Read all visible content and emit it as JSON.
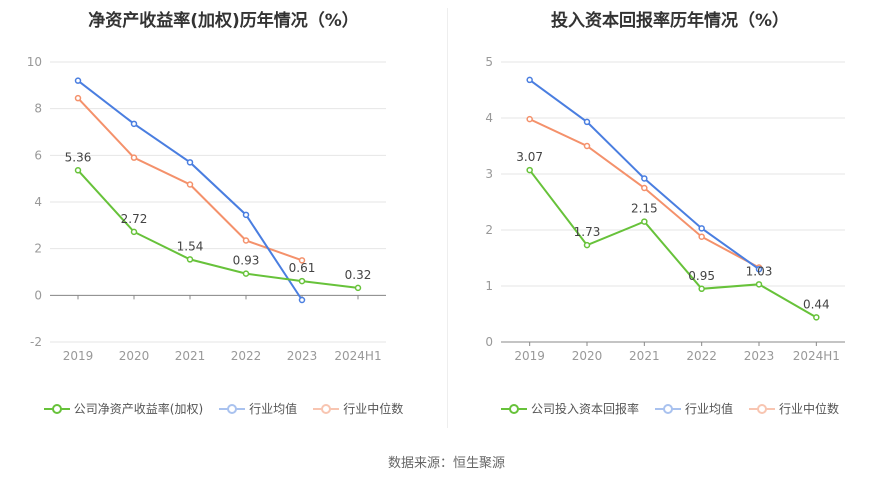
{
  "colors": {
    "company": "#67c23a",
    "average": "#4a7ee0",
    "median": "#f4916b",
    "grid": "#e6e6e6",
    "axis": "#999999"
  },
  "source_text": "数据来源：恒生聚源",
  "chart_data": [
    {
      "type": "line",
      "title": "净资产收益率(加权)历年情况（%）",
      "categories": [
        "2019",
        "2020",
        "2021",
        "2022",
        "2023",
        "2024H1"
      ],
      "ylim": [
        -2,
        10
      ],
      "yticks": [
        -2,
        0,
        2,
        4,
        6,
        8,
        10
      ],
      "grid": true,
      "legend_placement": "bottom",
      "series": [
        {
          "name": "公司净资产收益率(加权)",
          "role": "company",
          "values": [
            5.36,
            2.72,
            1.54,
            0.93,
            0.61,
            0.32
          ],
          "labels": [
            "5.36",
            "2.72",
            "1.54",
            "0.93",
            "0.61",
            "0.32"
          ]
        },
        {
          "name": "行业均值",
          "role": "average",
          "values": [
            9.2,
            7.35,
            5.7,
            3.45,
            -0.2,
            null
          ]
        },
        {
          "name": "行业中位数",
          "role": "median",
          "values": [
            8.45,
            5.9,
            4.75,
            2.35,
            1.5,
            null
          ]
        }
      ]
    },
    {
      "type": "line",
      "title": "投入资本回报率历年情况（%）",
      "categories": [
        "2019",
        "2020",
        "2021",
        "2022",
        "2023",
        "2024H1"
      ],
      "ylim": [
        0,
        5
      ],
      "yticks": [
        0,
        1,
        2,
        3,
        4,
        5
      ],
      "grid": true,
      "legend_placement": "bottom",
      "series": [
        {
          "name": "公司投入资本回报率",
          "role": "company",
          "values": [
            3.07,
            1.73,
            2.15,
            0.95,
            1.03,
            0.44
          ],
          "labels": [
            "3.07",
            "1.73",
            "2.15",
            "0.95",
            "1.03",
            "0.44"
          ]
        },
        {
          "name": "行业均值",
          "role": "average",
          "values": [
            4.68,
            3.93,
            2.92,
            2.03,
            1.3,
            null
          ]
        },
        {
          "name": "行业中位数",
          "role": "median",
          "values": [
            3.98,
            3.5,
            2.75,
            1.88,
            1.33,
            null
          ]
        }
      ]
    }
  ]
}
